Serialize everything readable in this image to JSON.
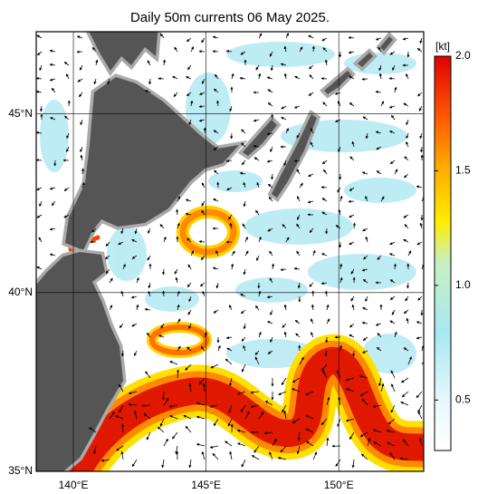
{
  "title": "Daily 50m currents 06 May 2025.",
  "map": {
    "lon_range": [
      138.6,
      153.2
    ],
    "lat_range": [
      35,
      47.3
    ],
    "lon_ticks": [
      {
        "value": 140,
        "label": "140°E"
      },
      {
        "value": 145,
        "label": "145°E"
      },
      {
        "value": 150,
        "label": "150°E"
      }
    ],
    "lat_ticks": [
      {
        "value": 35,
        "label": "35°N"
      },
      {
        "value": 40,
        "label": "40°N"
      },
      {
        "value": 45,
        "label": "45°N"
      }
    ]
  },
  "colorbar": {
    "unit": "[kt]",
    "range": [
      0.28,
      2.0
    ],
    "ticks": [
      {
        "value": 0.5,
        "label": "0.5"
      },
      {
        "value": 1,
        "label": "1.0"
      },
      {
        "value": 1.5,
        "label": "1.5"
      },
      {
        "value": 2,
        "label": "2.0"
      }
    ]
  }
}
